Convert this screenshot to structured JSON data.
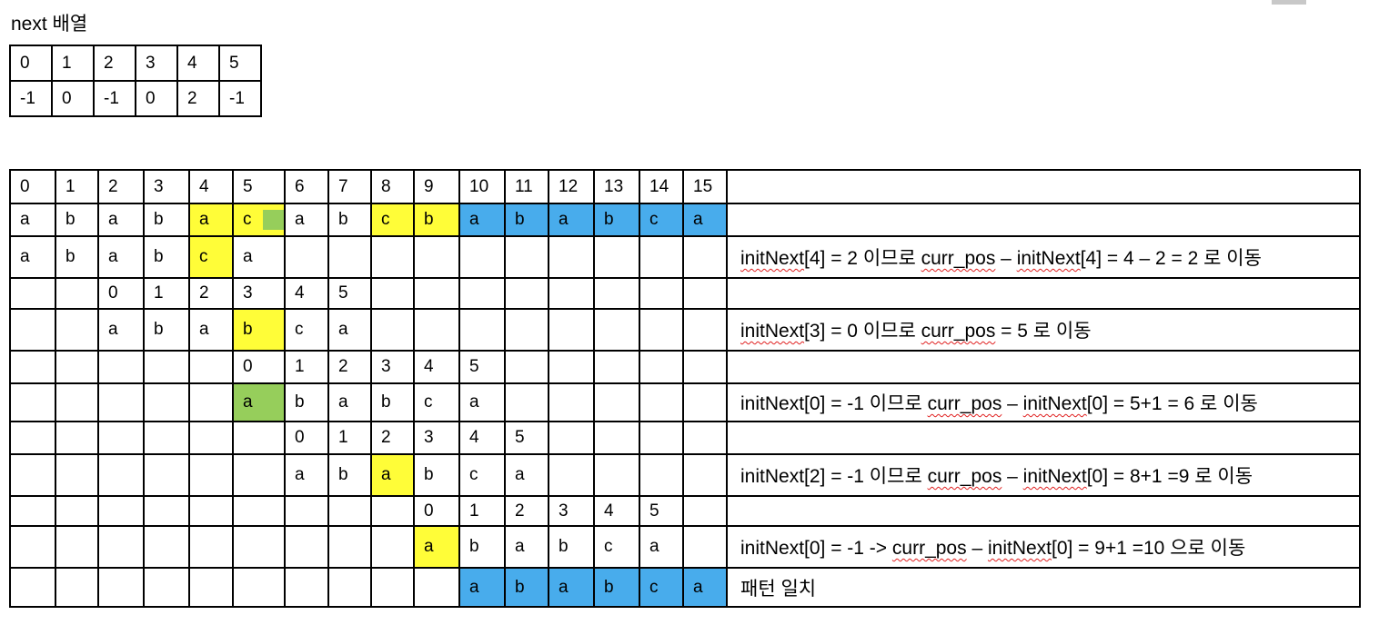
{
  "next_title": "next 배열",
  "next_table": {
    "indices": [
      "0",
      "1",
      "2",
      "3",
      "4",
      "5"
    ],
    "values": [
      "-1",
      "0",
      "-1",
      "0",
      "2",
      "-1"
    ]
  },
  "main_table": {
    "header": [
      "0",
      "1",
      "2",
      "3",
      "4",
      "5",
      "6",
      "7",
      "8",
      "9",
      "10",
      "11",
      "12",
      "13",
      "14",
      "15"
    ],
    "rows": [
      {
        "height": 36,
        "cells": [
          [
            "a",
            ""
          ],
          [
            "b",
            ""
          ],
          [
            "a",
            ""
          ],
          [
            "b",
            ""
          ],
          [
            "a",
            "y"
          ],
          [
            "c",
            "y-split"
          ],
          [
            "a",
            ""
          ],
          [
            "b",
            ""
          ],
          [
            "c",
            "y"
          ],
          [
            "b",
            "y"
          ],
          [
            "a",
            "b"
          ],
          [
            "b",
            "b"
          ],
          [
            "a",
            "b"
          ],
          [
            "b",
            "b"
          ],
          [
            "c",
            "b"
          ],
          [
            "a",
            "b"
          ]
        ],
        "note": []
      },
      {
        "height": 46,
        "offset": 0,
        "cells": [
          [
            "a",
            ""
          ],
          [
            "b",
            ""
          ],
          [
            "a",
            ""
          ],
          [
            "b",
            ""
          ],
          [
            "c",
            "y"
          ],
          [
            "a",
            ""
          ],
          [
            "",
            ""
          ],
          [
            "",
            ""
          ],
          [
            "",
            ""
          ],
          [
            "",
            ""
          ],
          [
            "",
            ""
          ],
          [
            "",
            ""
          ],
          [
            "",
            ""
          ],
          [
            "",
            ""
          ],
          [
            "",
            ""
          ],
          [
            "",
            ""
          ]
        ],
        "note": [
          [
            "initNext",
            true
          ],
          [
            "[4] = 2 이므로 ",
            false
          ],
          [
            "curr_pos",
            true
          ],
          [
            " – ",
            false
          ],
          [
            "initNext",
            true
          ],
          [
            "[4] = 4 – 2 = 2 로 이동",
            false
          ]
        ]
      },
      {
        "height": 34,
        "cells": [
          [
            "",
            ""
          ],
          [
            "",
            ""
          ],
          [
            "0",
            ""
          ],
          [
            "1",
            ""
          ],
          [
            "2",
            ""
          ],
          [
            "3",
            ""
          ],
          [
            "4",
            ""
          ],
          [
            "5",
            ""
          ],
          [
            "",
            ""
          ],
          [
            "",
            ""
          ],
          [
            "",
            ""
          ],
          [
            "",
            ""
          ],
          [
            "",
            ""
          ],
          [
            "",
            ""
          ],
          [
            "",
            ""
          ],
          [
            "",
            ""
          ]
        ],
        "note": []
      },
      {
        "height": 46,
        "cells": [
          [
            "",
            ""
          ],
          [
            "",
            ""
          ],
          [
            "a",
            ""
          ],
          [
            "b",
            ""
          ],
          [
            "a",
            ""
          ],
          [
            "b",
            "y"
          ],
          [
            "c",
            ""
          ],
          [
            "a",
            ""
          ],
          [
            "",
            ""
          ],
          [
            "",
            ""
          ],
          [
            "",
            ""
          ],
          [
            "",
            ""
          ],
          [
            "",
            ""
          ],
          [
            "",
            ""
          ],
          [
            "",
            ""
          ],
          [
            "",
            ""
          ]
        ],
        "note": [
          [
            "initNext",
            true
          ],
          [
            "[3] = 0 이므로 ",
            false
          ],
          [
            "curr_pos",
            true
          ],
          [
            " = 5 로 이동",
            false
          ]
        ]
      },
      {
        "height": 36,
        "cells": [
          [
            "",
            ""
          ],
          [
            "",
            ""
          ],
          [
            "",
            ""
          ],
          [
            "",
            ""
          ],
          [
            "",
            ""
          ],
          [
            "0",
            ""
          ],
          [
            "1",
            ""
          ],
          [
            "2",
            ""
          ],
          [
            "3",
            ""
          ],
          [
            "4",
            ""
          ],
          [
            "5",
            ""
          ],
          [
            "",
            ""
          ],
          [
            "",
            ""
          ],
          [
            "",
            ""
          ],
          [
            "",
            ""
          ],
          [
            "",
            ""
          ]
        ],
        "note": []
      },
      {
        "height": 42,
        "cells": [
          [
            "",
            ""
          ],
          [
            "",
            ""
          ],
          [
            "",
            ""
          ],
          [
            "",
            ""
          ],
          [
            "",
            ""
          ],
          [
            "a",
            "g"
          ],
          [
            "b",
            ""
          ],
          [
            "a",
            ""
          ],
          [
            "b",
            ""
          ],
          [
            "c",
            ""
          ],
          [
            "a",
            ""
          ],
          [
            "",
            ""
          ],
          [
            "",
            ""
          ],
          [
            "",
            ""
          ],
          [
            "",
            ""
          ],
          [
            "",
            ""
          ]
        ],
        "note": [
          [
            "initNext[0] = -1 이므로 ",
            false
          ],
          [
            "curr_pos",
            true
          ],
          [
            " – ",
            false
          ],
          [
            "initNext",
            true
          ],
          [
            "[0] = 5+1 = 6 로 이동",
            false
          ]
        ]
      },
      {
        "height": 36,
        "cells": [
          [
            "",
            ""
          ],
          [
            "",
            ""
          ],
          [
            "",
            ""
          ],
          [
            "",
            ""
          ],
          [
            "",
            ""
          ],
          [
            "",
            ""
          ],
          [
            "0",
            ""
          ],
          [
            "1",
            ""
          ],
          [
            "2",
            ""
          ],
          [
            "3",
            ""
          ],
          [
            "4",
            ""
          ],
          [
            "5",
            ""
          ],
          [
            "",
            ""
          ],
          [
            "",
            ""
          ],
          [
            "",
            ""
          ],
          [
            "",
            ""
          ]
        ],
        "note": []
      },
      {
        "height": 46,
        "cells": [
          [
            "",
            ""
          ],
          [
            "",
            ""
          ],
          [
            "",
            ""
          ],
          [
            "",
            ""
          ],
          [
            "",
            ""
          ],
          [
            "",
            ""
          ],
          [
            "a",
            ""
          ],
          [
            "b",
            ""
          ],
          [
            "a",
            "y"
          ],
          [
            "b",
            ""
          ],
          [
            "c",
            ""
          ],
          [
            "a",
            ""
          ],
          [
            "",
            ""
          ],
          [
            "",
            ""
          ],
          [
            "",
            ""
          ],
          [
            "",
            ""
          ]
        ],
        "note": [
          [
            "initNext[2] = -1 이므로 ",
            false
          ],
          [
            "curr_pos",
            true
          ],
          [
            " – ",
            false
          ],
          [
            "initNext",
            true
          ],
          [
            "[0] = 8+1 =9 로 이동",
            false
          ]
        ]
      },
      {
        "height": 33,
        "cells": [
          [
            "",
            ""
          ],
          [
            "",
            ""
          ],
          [
            "",
            ""
          ],
          [
            "",
            ""
          ],
          [
            "",
            ""
          ],
          [
            "",
            ""
          ],
          [
            "",
            ""
          ],
          [
            "",
            ""
          ],
          [
            "",
            ""
          ],
          [
            "0",
            ""
          ],
          [
            "1",
            ""
          ],
          [
            "2",
            ""
          ],
          [
            "3",
            ""
          ],
          [
            "4",
            ""
          ],
          [
            "5",
            ""
          ],
          [
            "",
            ""
          ]
        ],
        "note": []
      },
      {
        "height": 46,
        "cells": [
          [
            "",
            ""
          ],
          [
            "",
            ""
          ],
          [
            "",
            ""
          ],
          [
            "",
            ""
          ],
          [
            "",
            ""
          ],
          [
            "",
            ""
          ],
          [
            "",
            ""
          ],
          [
            "",
            ""
          ],
          [
            "",
            ""
          ],
          [
            "a",
            "y"
          ],
          [
            "b",
            ""
          ],
          [
            "a",
            ""
          ],
          [
            "b",
            ""
          ],
          [
            "c",
            ""
          ],
          [
            "a",
            ""
          ],
          [
            "",
            ""
          ]
        ],
        "note": [
          [
            "initNext[0] = -1 -> ",
            false
          ],
          [
            "curr_pos",
            true
          ],
          [
            " – ",
            false
          ],
          [
            "initNext",
            true
          ],
          [
            "[0] = 9+1 =10 으로 이동",
            false
          ]
        ]
      },
      {
        "height": 43,
        "cells": [
          [
            "",
            ""
          ],
          [
            "",
            ""
          ],
          [
            "",
            ""
          ],
          [
            "",
            ""
          ],
          [
            "",
            ""
          ],
          [
            "",
            ""
          ],
          [
            "",
            ""
          ],
          [
            "",
            ""
          ],
          [
            "",
            ""
          ],
          [
            "",
            ""
          ],
          [
            "a",
            "b"
          ],
          [
            "b",
            "b"
          ],
          [
            "a",
            "b"
          ],
          [
            "b",
            "b"
          ],
          [
            "c",
            "b"
          ],
          [
            "a",
            "b"
          ]
        ],
        "note": [
          [
            "패턴 일치",
            false
          ]
        ]
      }
    ]
  },
  "colors": {
    "yellow": "#fffd38",
    "green": "#96ce5b",
    "blue": "#48acec",
    "squiggle": "#e02020"
  }
}
